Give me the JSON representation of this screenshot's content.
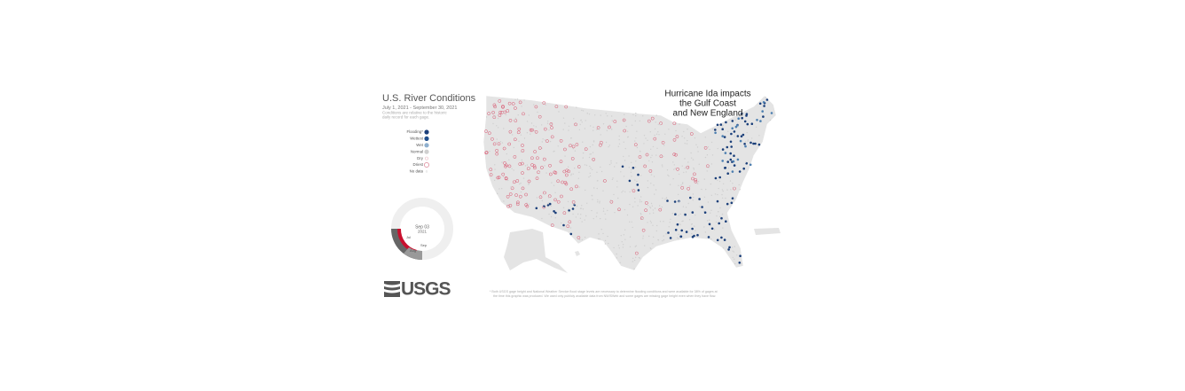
{
  "header": {
    "title": "U.S. River Conditions",
    "dates": "July 1, 2021 - September 30, 2021",
    "note_line1": "Conditions are relative to the historic",
    "note_line2": "daily record for each gage."
  },
  "legend": [
    {
      "label": "Flooding*"
    },
    {
      "label": "Wettest"
    },
    {
      "label": "Wet"
    },
    {
      "label": "Normal"
    },
    {
      "label": "Dry"
    },
    {
      "label": "Driest"
    },
    {
      "label": "No data"
    }
  ],
  "clock": {
    "date": "Sep 03",
    "year": "2021",
    "months": [
      "Jul",
      "Aug",
      "Sep"
    ]
  },
  "logo": "USGS",
  "annotation": {
    "line1": "Hurricane Ida impacts",
    "line2": "the Gulf Coast",
    "line3": "and New England"
  },
  "footnote": {
    "line1": "* Both USGS gage height and National Weather Service flood stage levels are necessary to determine flooding conditions and were available for 38% of gages at",
    "line2": "the time this graphic was produced. We used only publicly available data from NWISWeb and some gages are missing gage height even when they have flow."
  }
}
